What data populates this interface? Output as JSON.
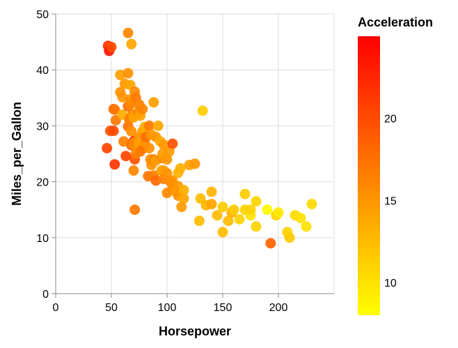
{
  "chart_data": {
    "type": "scatter",
    "title": "",
    "xlabel": "Horsepower",
    "ylabel": "Miles_per_Gallon",
    "xlim": [
      0,
      250
    ],
    "ylim": [
      0,
      50
    ],
    "x_ticks": [
      0,
      50,
      100,
      150,
      200
    ],
    "y_ticks": [
      0,
      10,
      20,
      30,
      40,
      50
    ],
    "grid": true,
    "legend": {
      "title": "Acceleration",
      "placement": "right",
      "type": "gradient",
      "range": [
        8,
        25
      ],
      "ticks": [
        10,
        15,
        20
      ],
      "color_low": "#ffff00",
      "color_high": "#ff0000"
    },
    "points": [
      [
        46,
        26,
        20.5
      ],
      [
        47,
        44.3,
        21.7
      ],
      [
        48,
        43.4,
        23.7
      ],
      [
        49,
        29.1,
        19.5
      ],
      [
        50,
        44.1,
        20
      ],
      [
        52,
        29.1,
        20
      ],
      [
        52,
        33,
        17.4
      ],
      [
        53,
        32.9,
        17.1
      ],
      [
        53,
        23.1,
        21.5
      ],
      [
        54,
        31,
        17
      ],
      [
        58,
        36,
        15.5
      ],
      [
        58,
        39.1,
        14.5
      ],
      [
        60,
        35.1,
        15
      ],
      [
        60,
        32,
        13.5
      ],
      [
        61,
        27.2,
        16.5
      ],
      [
        62,
        37.5,
        15
      ],
      [
        63,
        24.6,
        20.5
      ],
      [
        65,
        46.6,
        16
      ],
      [
        65,
        39.4,
        15.4
      ],
      [
        65,
        29.9,
        17.6
      ],
      [
        65,
        33.5,
        18
      ],
      [
        66,
        31.2,
        16.2
      ],
      [
        67,
        33.8,
        16
      ],
      [
        67,
        34.7,
        15.5
      ],
      [
        67,
        31.3,
        16.4
      ],
      [
        67,
        37.3,
        14
      ],
      [
        68,
        29,
        15.5
      ],
      [
        68,
        44.6,
        13.8
      ],
      [
        68,
        26.5,
        17.5
      ],
      [
        69,
        32,
        16.2
      ],
      [
        70,
        27.2,
        24.6
      ],
      [
        70,
        22,
        16
      ],
      [
        70,
        31.5,
        14
      ],
      [
        70,
        27,
        15.5
      ],
      [
        71,
        24,
        19.5
      ],
      [
        71,
        15,
        17
      ],
      [
        71,
        36.1,
        15.8
      ],
      [
        72,
        35,
        16.8
      ],
      [
        72,
        25,
        16.5
      ],
      [
        74,
        26,
        14.8
      ],
      [
        74,
        32.4,
        15.8
      ],
      [
        75,
        28,
        15.5
      ],
      [
        75,
        33.8,
        16.4
      ],
      [
        75,
        27,
        14.5
      ],
      [
        76,
        31.8,
        14.2
      ],
      [
        76,
        25.4,
        16.8
      ],
      [
        78,
        29,
        14.5
      ],
      [
        78,
        33,
        16.2
      ],
      [
        79,
        26,
        17.2
      ],
      [
        80,
        27,
        15.3
      ],
      [
        80,
        29.8,
        13.6
      ],
      [
        81,
        28,
        17.5
      ],
      [
        83,
        21,
        17.2
      ],
      [
        84,
        30,
        17
      ],
      [
        84,
        26,
        15.5
      ],
      [
        85,
        24,
        15.5
      ],
      [
        86,
        28.4,
        14.9
      ],
      [
        86,
        23,
        15.4
      ],
      [
        88,
        34.2,
        14.5
      ],
      [
        88,
        24,
        16
      ],
      [
        88,
        21.1,
        16.5
      ],
      [
        90,
        28,
        15
      ],
      [
        90,
        23.8,
        14.6
      ],
      [
        90,
        20.2,
        18
      ],
      [
        92,
        30,
        13.9
      ],
      [
        94,
        27.2,
        13.8
      ],
      [
        95,
        24.2,
        15.5
      ],
      [
        95,
        22,
        14.2
      ],
      [
        96,
        25,
        14.5
      ],
      [
        97,
        22,
        14.5
      ],
      [
        97,
        26.6,
        15
      ],
      [
        97,
        20.5,
        16.5
      ],
      [
        100,
        24,
        15
      ],
      [
        100,
        18,
        15.8
      ],
      [
        100,
        21.5,
        15.3
      ],
      [
        102,
        25.4,
        14.8
      ],
      [
        103,
        20,
        16
      ],
      [
        105,
        20.2,
        15.3
      ],
      [
        105,
        26.8,
        19.6
      ],
      [
        105,
        19.1,
        15.2
      ],
      [
        105,
        18.6,
        15.8
      ],
      [
        108,
        18.2,
        14.5
      ],
      [
        110,
        19.2,
        14.9
      ],
      [
        110,
        17.5,
        15.4
      ],
      [
        110,
        21.6,
        13.2
      ],
      [
        112,
        22.4,
        13.2
      ],
      [
        113,
        15.5,
        14.8
      ],
      [
        115,
        17,
        14
      ],
      [
        115,
        18.5,
        13.5
      ],
      [
        120,
        23,
        14.2
      ],
      [
        125,
        23.2,
        15
      ],
      [
        129,
        13,
        12.5
      ],
      [
        130,
        17,
        12.5
      ],
      [
        132,
        32.7,
        11.4
      ],
      [
        135,
        15.8,
        13
      ],
      [
        140,
        16,
        14
      ],
      [
        140,
        18.2,
        13
      ],
      [
        145,
        14,
        12.5
      ],
      [
        150,
        15.5,
        11.5
      ],
      [
        150,
        11,
        12.5
      ],
      [
        155,
        13,
        12.5
      ],
      [
        158,
        14.5,
        13.5
      ],
      [
        160,
        15,
        11.5
      ],
      [
        165,
        13.3,
        11
      ],
      [
        170,
        15,
        11
      ],
      [
        170,
        17.8,
        11.5
      ],
      [
        175,
        14,
        10
      ],
      [
        175,
        15,
        11
      ],
      [
        180,
        16.5,
        11
      ],
      [
        180,
        12,
        11
      ],
      [
        190,
        15,
        8.5
      ],
      [
        193,
        9,
        18.5
      ],
      [
        198,
        14,
        11
      ],
      [
        200,
        14.5,
        9.5
      ],
      [
        208,
        11,
        11
      ],
      [
        210,
        10,
        11.5
      ],
      [
        215,
        14,
        10.5
      ],
      [
        220,
        13.5,
        10
      ],
      [
        225,
        12,
        10
      ],
      [
        230,
        16,
        10.5
      ]
    ]
  }
}
